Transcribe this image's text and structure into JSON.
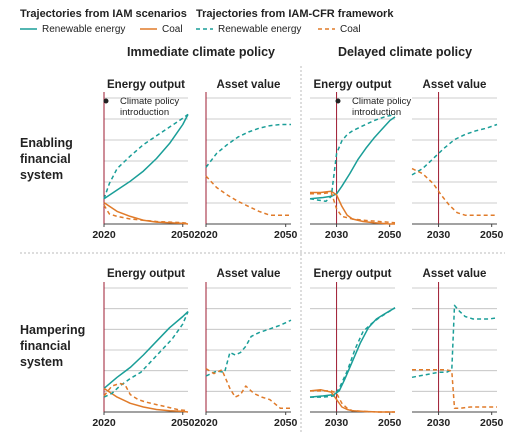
{
  "legend": {
    "iam_title": "Trajectories from IAM scenarios",
    "cfr_title": "Trajectories from IAM-CFR framework",
    "items": [
      {
        "label": "Renewable energy",
        "series": "renewable",
        "style": "solid"
      },
      {
        "label": "Coal",
        "series": "coal",
        "style": "solid"
      },
      {
        "label": "Renewable energy",
        "series": "renewable",
        "style": "dashed"
      },
      {
        "label": "Coal",
        "series": "coal",
        "style": "dashed"
      }
    ]
  },
  "colors": {
    "renewable": "#1a9e98",
    "coal": "#e07b2a",
    "policy_line": "#9e1b32",
    "grid": "#bdbdbd",
    "axis": "#444444",
    "divider": "#bbbbbb"
  },
  "columns": [
    "Immediate climate policy",
    "Delayed climate policy"
  ],
  "rows": [
    {
      "label_lines": [
        "Enabling",
        "financial",
        "system"
      ]
    },
    {
      "label_lines": [
        "Hampering",
        "financial",
        "system"
      ]
    }
  ],
  "panel_titles": {
    "energy": "Energy output",
    "asset": "Asset value"
  },
  "annotation": {
    "lines": [
      "Climate policy",
      "introduction"
    ]
  },
  "chart_data": [
    {
      "type": "line",
      "row": "Enabling financial system",
      "column": "Immediate climate policy",
      "title": "Energy output",
      "xlim": [
        2020,
        2052
      ],
      "ylim": [
        0,
        1
      ],
      "xticks": [
        2020,
        2050
      ],
      "grid": true,
      "policy_year": 2020,
      "series": [
        {
          "name": "Renewable energy",
          "style": "solid",
          "color": "renewable",
          "x": [
            2020,
            2025,
            2030,
            2035,
            2040,
            2045,
            2050,
            2052
          ],
          "y": [
            0.2,
            0.27,
            0.34,
            0.42,
            0.52,
            0.64,
            0.79,
            0.87
          ]
        },
        {
          "name": "Coal",
          "style": "solid",
          "color": "coal",
          "x": [
            2020,
            2025,
            2030,
            2035,
            2040,
            2045,
            2050,
            2052
          ],
          "y": [
            0.17,
            0.1,
            0.06,
            0.03,
            0.015,
            0.01,
            0.005,
            0.0
          ]
        },
        {
          "name": "Renewable energy",
          "style": "dashed",
          "color": "renewable",
          "x": [
            2020,
            2022,
            2025,
            2030,
            2035,
            2040,
            2045,
            2050,
            2052
          ],
          "y": [
            0.2,
            0.32,
            0.44,
            0.54,
            0.63,
            0.7,
            0.77,
            0.84,
            0.87
          ]
        },
        {
          "name": "Coal",
          "style": "dashed",
          "color": "coal",
          "x": [
            2020,
            2022,
            2025,
            2030,
            2040,
            2050,
            2052
          ],
          "y": [
            0.15,
            0.08,
            0.06,
            0.04,
            0.02,
            0.01,
            0.005
          ]
        }
      ]
    },
    {
      "type": "line",
      "row": "Enabling financial system",
      "column": "Immediate climate policy",
      "title": "Asset value",
      "xlim": [
        2020,
        2052
      ],
      "ylim": [
        0,
        1
      ],
      "xticks": [
        2020,
        2050
      ],
      "grid": true,
      "policy_year": 2020,
      "series": [
        {
          "name": "Renewable energy",
          "style": "dashed",
          "color": "renewable",
          "x": [
            2020,
            2024,
            2028,
            2032,
            2036,
            2040,
            2044,
            2048,
            2052
          ],
          "y": [
            0.45,
            0.56,
            0.63,
            0.69,
            0.73,
            0.76,
            0.78,
            0.79,
            0.79
          ]
        },
        {
          "name": "Coal",
          "style": "dashed",
          "color": "coal",
          "x": [
            2020,
            2024,
            2028,
            2032,
            2036,
            2040,
            2044,
            2048,
            2052
          ],
          "y": [
            0.38,
            0.29,
            0.23,
            0.18,
            0.14,
            0.1,
            0.07,
            0.07,
            0.07
          ]
        }
      ]
    },
    {
      "type": "line",
      "row": "Enabling financial system",
      "column": "Delayed climate policy",
      "title": "Energy output",
      "xlim": [
        2020,
        2052
      ],
      "ylim": [
        0,
        1
      ],
      "xticks": [
        2030,
        2050
      ],
      "grid": true,
      "policy_year": 2030,
      "series": [
        {
          "name": "Renewable energy",
          "style": "solid",
          "color": "renewable",
          "x": [
            2020,
            2025,
            2028,
            2030,
            2032,
            2035,
            2038,
            2041,
            2044,
            2047,
            2050,
            2052
          ],
          "y": [
            0.2,
            0.21,
            0.22,
            0.24,
            0.3,
            0.4,
            0.51,
            0.6,
            0.68,
            0.75,
            0.82,
            0.85
          ]
        },
        {
          "name": "Coal",
          "style": "solid",
          "color": "coal",
          "x": [
            2020,
            2024,
            2028,
            2030,
            2032,
            2034,
            2036,
            2040,
            2044,
            2050,
            2052
          ],
          "y": [
            0.25,
            0.25,
            0.26,
            0.23,
            0.14,
            0.07,
            0.04,
            0.02,
            0.01,
            0.0,
            0.0
          ]
        },
        {
          "name": "Renewable energy",
          "style": "dashed",
          "color": "renewable",
          "x": [
            2020,
            2023,
            2026,
            2028,
            2030,
            2032,
            2034,
            2036,
            2040,
            2044,
            2048,
            2052
          ],
          "y": [
            0.2,
            0.19,
            0.18,
            0.22,
            0.56,
            0.66,
            0.71,
            0.74,
            0.78,
            0.82,
            0.85,
            0.87
          ]
        },
        {
          "name": "Coal",
          "style": "dashed",
          "color": "coal",
          "x": [
            2020,
            2024,
            2028,
            2030,
            2032,
            2034,
            2036,
            2040,
            2046,
            2052
          ],
          "y": [
            0.24,
            0.24,
            0.25,
            0.12,
            0.06,
            0.05,
            0.04,
            0.03,
            0.02,
            0.01
          ]
        }
      ]
    },
    {
      "type": "line",
      "row": "Enabling financial system",
      "column": "Delayed climate policy",
      "title": "Asset value",
      "xlim": [
        2020,
        2052
      ],
      "ylim": [
        0,
        1
      ],
      "xticks": [
        2030,
        2050
      ],
      "grid": true,
      "policy_year": 2030,
      "series": [
        {
          "name": "Renewable energy",
          "style": "dashed",
          "color": "renewable",
          "x": [
            2020,
            2024,
            2028,
            2032,
            2036,
            2040,
            2044,
            2048,
            2052
          ],
          "y": [
            0.39,
            0.44,
            0.52,
            0.6,
            0.67,
            0.71,
            0.74,
            0.76,
            0.79
          ]
        },
        {
          "name": "Coal",
          "style": "dashed",
          "color": "coal",
          "x": [
            2020,
            2024,
            2028,
            2031,
            2034,
            2037,
            2040,
            2046,
            2052
          ],
          "y": [
            0.44,
            0.4,
            0.32,
            0.23,
            0.15,
            0.09,
            0.07,
            0.07,
            0.07
          ]
        }
      ]
    },
    {
      "type": "line",
      "row": "Hampering financial system",
      "column": "Immediate climate policy",
      "title": "Energy output",
      "xlim": [
        2020,
        2052
      ],
      "ylim": [
        0,
        1
      ],
      "xticks": [
        2020,
        2050
      ],
      "grid": true,
      "policy_year": 2020,
      "series": [
        {
          "name": "Renewable energy",
          "style": "solid",
          "color": "renewable",
          "x": [
            2020,
            2025,
            2030,
            2035,
            2040,
            2045,
            2050,
            2052
          ],
          "y": [
            0.19,
            0.28,
            0.36,
            0.46,
            0.57,
            0.68,
            0.77,
            0.81
          ]
        },
        {
          "name": "Coal",
          "style": "solid",
          "color": "coal",
          "x": [
            2020,
            2025,
            2030,
            2035,
            2040,
            2045,
            2050,
            2052
          ],
          "y": [
            0.19,
            0.12,
            0.07,
            0.04,
            0.02,
            0.01,
            0.005,
            0.0
          ]
        },
        {
          "name": "Renewable energy",
          "style": "dashed",
          "color": "renewable",
          "x": [
            2020,
            2023,
            2026,
            2030,
            2034,
            2038,
            2042,
            2046,
            2050,
            2052
          ],
          "y": [
            0.12,
            0.15,
            0.21,
            0.27,
            0.32,
            0.41,
            0.5,
            0.59,
            0.71,
            0.81
          ]
        },
        {
          "name": "Coal",
          "style": "dashed",
          "color": "coal",
          "x": [
            2020,
            2023,
            2026,
            2028,
            2030,
            2033,
            2036,
            2040,
            2044,
            2048,
            2052
          ],
          "y": [
            0.13,
            0.21,
            0.23,
            0.22,
            0.14,
            0.1,
            0.08,
            0.06,
            0.04,
            0.02,
            0.01
          ]
        }
      ]
    },
    {
      "type": "line",
      "row": "Hampering financial system",
      "column": "Immediate climate policy",
      "title": "Asset value",
      "xlim": [
        2020,
        2052
      ],
      "ylim": [
        0,
        1
      ],
      "xticks": [
        2020,
        2050
      ],
      "grid": true,
      "policy_year": 2020,
      "series": [
        {
          "name": "Renewable energy",
          "style": "dashed",
          "color": "renewable",
          "x": [
            2020,
            2024,
            2027,
            2029,
            2031,
            2033,
            2035,
            2037,
            2040,
            2044,
            2048,
            2052
          ],
          "y": [
            0.29,
            0.33,
            0.32,
            0.48,
            0.46,
            0.48,
            0.53,
            0.61,
            0.64,
            0.67,
            0.7,
            0.74
          ]
        },
        {
          "name": "Coal",
          "style": "dashed",
          "color": "coal",
          "x": [
            2020,
            2023,
            2026,
            2029,
            2031,
            2033,
            2035,
            2038,
            2041,
            2044,
            2048,
            2052
          ],
          "y": [
            0.35,
            0.31,
            0.34,
            0.19,
            0.12,
            0.14,
            0.21,
            0.15,
            0.12,
            0.1,
            0.03,
            0.03
          ]
        }
      ]
    },
    {
      "type": "line",
      "row": "Hampering financial system",
      "column": "Delayed climate policy",
      "title": "Energy output",
      "xlim": [
        2020,
        2052
      ],
      "ylim": [
        0,
        1
      ],
      "xticks": [
        2030,
        2050
      ],
      "grid": true,
      "policy_year": 2030,
      "series": [
        {
          "name": "Renewable energy",
          "style": "solid",
          "color": "renewable",
          "x": [
            2020,
            2025,
            2029,
            2031,
            2033,
            2036,
            2039,
            2042,
            2045,
            2048,
            2052
          ],
          "y": [
            0.12,
            0.13,
            0.14,
            0.17,
            0.26,
            0.41,
            0.56,
            0.68,
            0.75,
            0.79,
            0.84
          ]
        },
        {
          "name": "Coal",
          "style": "solid",
          "color": "coal",
          "x": [
            2020,
            2024,
            2028,
            2030,
            2032,
            2034,
            2036,
            2040,
            2046,
            2052
          ],
          "y": [
            0.17,
            0.18,
            0.16,
            0.1,
            0.04,
            0.02,
            0.01,
            0.005,
            0.0,
            0.0
          ]
        },
        {
          "name": "Renewable energy",
          "style": "dashed",
          "color": "renewable",
          "x": [
            2020,
            2025,
            2029,
            2031,
            2034,
            2037,
            2040,
            2043,
            2046,
            2049,
            2052
          ],
          "y": [
            0.12,
            0.12,
            0.13,
            0.19,
            0.33,
            0.51,
            0.65,
            0.71,
            0.76,
            0.8,
            0.84
          ]
        },
        {
          "name": "Coal",
          "style": "dashed",
          "color": "coal",
          "x": [
            2020,
            2024,
            2028,
            2030,
            2032,
            2034,
            2036,
            2040,
            2046,
            2052
          ],
          "y": [
            0.17,
            0.17,
            0.17,
            0.15,
            0.07,
            0.03,
            0.01,
            0.005,
            0.0,
            0.0
          ]
        }
      ]
    },
    {
      "type": "line",
      "row": "Hampering financial system",
      "column": "Delayed climate policy",
      "title": "Asset value",
      "xlim": [
        2020,
        2052
      ],
      "ylim": [
        0,
        1
      ],
      "xticks": [
        2030,
        2050
      ],
      "grid": true,
      "policy_year": 2030,
      "series": [
        {
          "name": "Renewable energy",
          "style": "dashed",
          "color": "renewable",
          "x": [
            2020,
            2025,
            2030,
            2033,
            2035,
            2036,
            2038,
            2040,
            2043,
            2046,
            2049,
            2052
          ],
          "y": [
            0.28,
            0.3,
            0.32,
            0.32,
            0.34,
            0.86,
            0.81,
            0.77,
            0.75,
            0.75,
            0.75,
            0.76
          ]
        },
        {
          "name": "Coal",
          "style": "dashed",
          "color": "coal",
          "x": [
            2020,
            2024,
            2028,
            2031,
            2033,
            2035,
            2036,
            2038,
            2042,
            2046,
            2052
          ],
          "y": [
            0.34,
            0.34,
            0.34,
            0.34,
            0.34,
            0.33,
            0.03,
            0.03,
            0.04,
            0.04,
            0.04
          ]
        }
      ]
    }
  ]
}
